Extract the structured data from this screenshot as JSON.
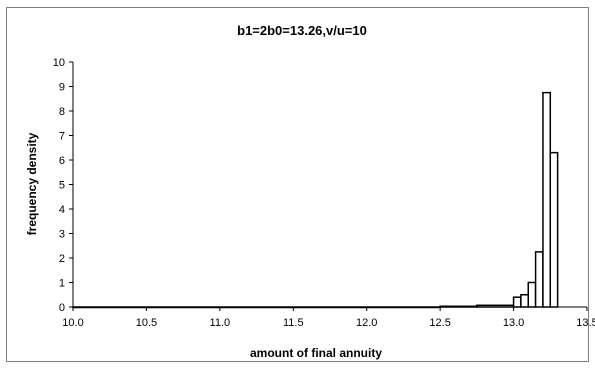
{
  "chart_data": {
    "type": "bar",
    "title": "b1=2b0=13.26,v/u=10",
    "xlabel": "amount of final annuity",
    "ylabel": "frequency density",
    "xlim": [
      10.0,
      13.5
    ],
    "ylim": [
      0,
      10
    ],
    "x_ticks": [
      "10.0",
      "10.5",
      "11.0",
      "11.5",
      "12.0",
      "12.5",
      "13.0",
      "13.5"
    ],
    "y_ticks": [
      "0",
      "1",
      "2",
      "3",
      "4",
      "5",
      "6",
      "7",
      "8",
      "9",
      "10"
    ],
    "grid": false,
    "legend": "none",
    "bar_fill": "#ffffff",
    "bar_stroke": "#000000",
    "bins": [
      {
        "from": 10.0,
        "to": 12.5,
        "value": 0.0
      },
      {
        "from": 12.5,
        "to": 12.75,
        "value": 0.03
      },
      {
        "from": 12.75,
        "to": 13.0,
        "value": 0.07
      },
      {
        "from": 13.0,
        "to": 13.05,
        "value": 0.4
      },
      {
        "from": 13.05,
        "to": 13.1,
        "value": 0.5
      },
      {
        "from": 13.1,
        "to": 13.15,
        "value": 1.0
      },
      {
        "from": 13.15,
        "to": 13.2,
        "value": 2.25
      },
      {
        "from": 13.2,
        "to": 13.25,
        "value": 8.75
      },
      {
        "from": 13.25,
        "to": 13.3,
        "value": 6.3
      }
    ]
  }
}
